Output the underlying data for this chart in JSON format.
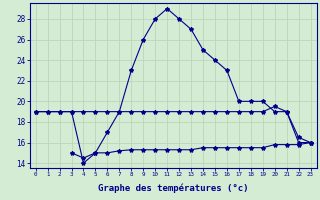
{
  "xlabel": "Graphe des températures (°c)",
  "background_color": "#d4ecd4",
  "grid_color": "#b8d8b8",
  "line_color": "#00008b",
  "temp_actual_x": [
    0,
    1,
    2,
    3,
    4,
    5,
    6,
    7,
    8,
    9,
    10,
    11,
    12,
    13,
    14,
    15,
    16,
    17,
    18,
    19,
    20,
    21,
    22,
    23
  ],
  "temp_actual_y": [
    19,
    19,
    19,
    19,
    14,
    15,
    17,
    19,
    23,
    26,
    28,
    29,
    28,
    27,
    25,
    24,
    23,
    20,
    20,
    20,
    19,
    19,
    16,
    16
  ],
  "mid_x": [
    0,
    1,
    2,
    3,
    4,
    5,
    6,
    7,
    8,
    9,
    10,
    11,
    12,
    13,
    14,
    15,
    16,
    17,
    18,
    19,
    20,
    21,
    22,
    23
  ],
  "mid_y": [
    19,
    19,
    19,
    19,
    19,
    19,
    19,
    19,
    19,
    19,
    19,
    19,
    19,
    19,
    19,
    19,
    19,
    19,
    19,
    19,
    19.5,
    19,
    16.5,
    16
  ],
  "bot_x": [
    3,
    4,
    5,
    6,
    7,
    8,
    9,
    10,
    11,
    12,
    13,
    14,
    15,
    16,
    17,
    18,
    19,
    20,
    21,
    22,
    23
  ],
  "bot_y": [
    15,
    14.5,
    15,
    15,
    15.2,
    15.3,
    15.3,
    15.3,
    15.3,
    15.3,
    15.3,
    15.5,
    15.5,
    15.5,
    15.5,
    15.5,
    15.5,
    15.8,
    15.8,
    15.8,
    16
  ],
  "ylim": [
    13.5,
    29.5
  ],
  "yticks": [
    14,
    16,
    18,
    20,
    22,
    24,
    26,
    28
  ],
  "xlim": [
    -0.5,
    23.5
  ]
}
